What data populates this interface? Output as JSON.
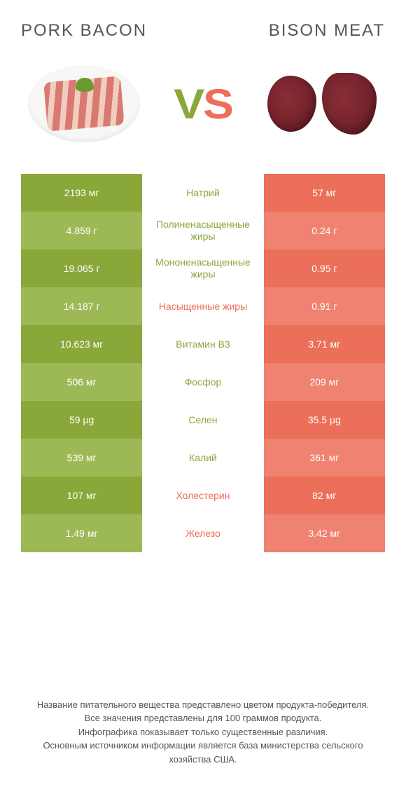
{
  "colors": {
    "green_a": "#8aa83a",
    "green_b": "#9db955",
    "green_text": "#8aa83a",
    "orange_a": "#ec6f59",
    "orange_b": "#ef8270",
    "orange_text": "#ec6f59",
    "white": "#ffffff"
  },
  "header": {
    "left_title": "PORK BACON",
    "right_title": "BISON MEAT",
    "vs_v": "V",
    "vs_s": "S"
  },
  "rows": [
    {
      "left": "2193 мг",
      "label": "Натрий",
      "right": "57 мг",
      "winner": "left"
    },
    {
      "left": "4.859 г",
      "label": "Полиненасыщенные жиры",
      "right": "0.24 г",
      "winner": "left"
    },
    {
      "left": "19.065 г",
      "label": "Мононенасыщенные жиры",
      "right": "0.95 г",
      "winner": "left"
    },
    {
      "left": "14.187 г",
      "label": "Насыщенные жиры",
      "right": "0.91 г",
      "winner": "right"
    },
    {
      "left": "10.623 мг",
      "label": "Витамин B3",
      "right": "3.71 мг",
      "winner": "left"
    },
    {
      "left": "506 мг",
      "label": "Фосфор",
      "right": "209 мг",
      "winner": "left"
    },
    {
      "left": "59 µg",
      "label": "Селен",
      "right": "35.5 µg",
      "winner": "left"
    },
    {
      "left": "539 мг",
      "label": "Калий",
      "right": "361 мг",
      "winner": "left"
    },
    {
      "left": "107 мг",
      "label": "Холестерин",
      "right": "82 мг",
      "winner": "right"
    },
    {
      "left": "1.49 мг",
      "label": "Железо",
      "right": "3.42 мг",
      "winner": "right"
    }
  ],
  "footer": {
    "line1": "Название питательного вещества представлено цветом продукта-победителя.",
    "line2": "Все значения представлены для 100 граммов продукта.",
    "line3": "Инфографика показывает только существенные различия.",
    "line4": "Основным источником информации является база министерства сельского хозяйства США."
  }
}
